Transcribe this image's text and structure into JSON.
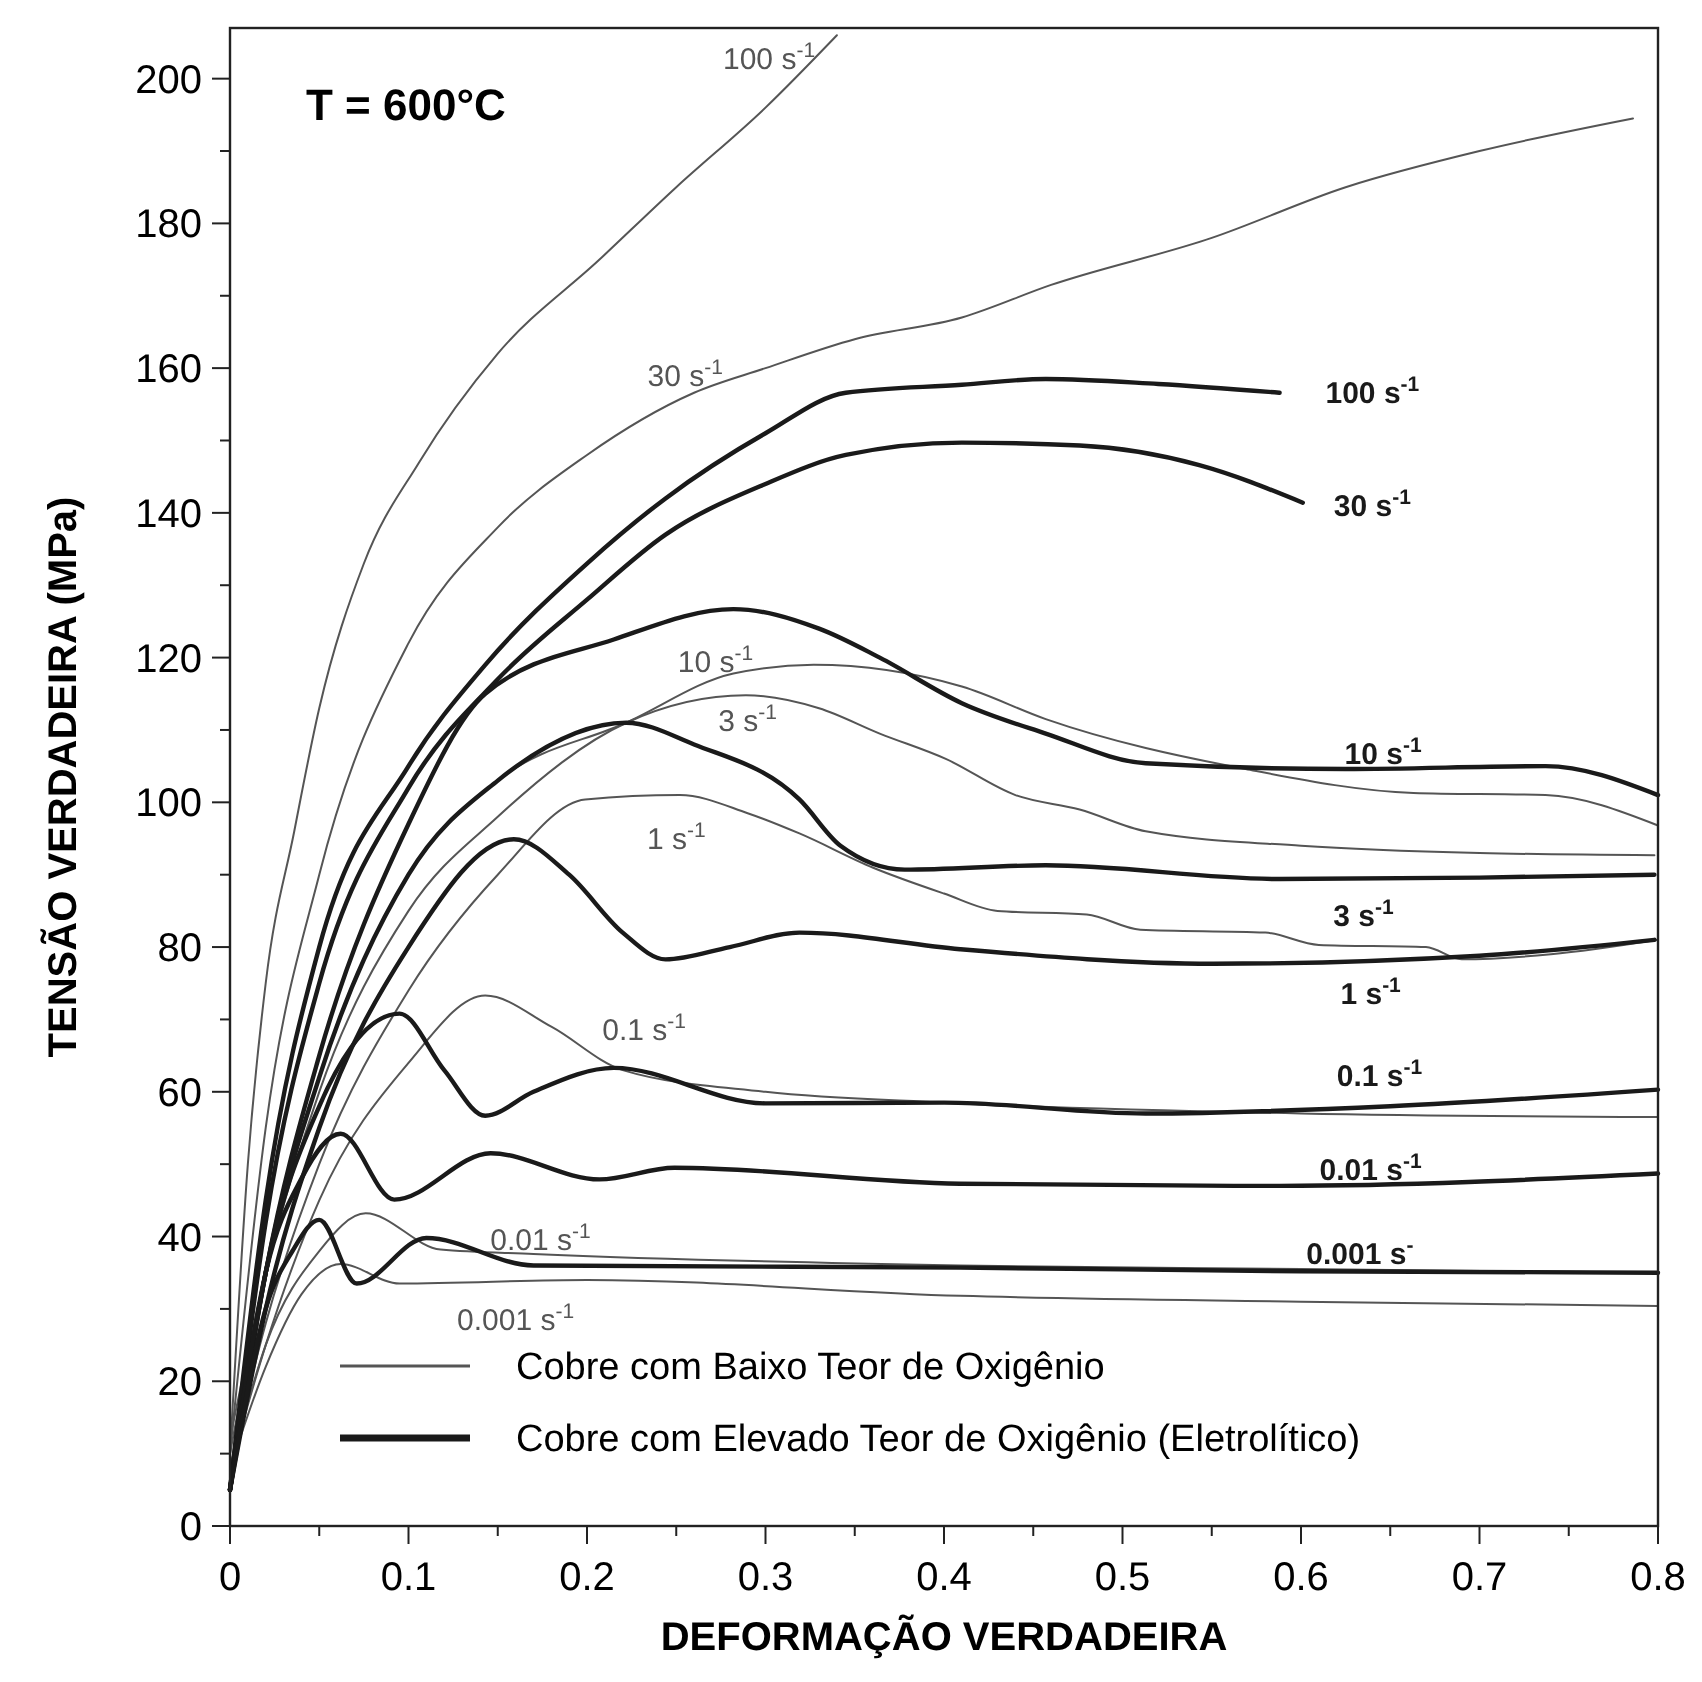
{
  "chart_data": {
    "type": "line",
    "xlabel": "DEFORMAÇÃO VERDADEIRA",
    "ylabel": "TENSÃO VERDADEIRA (MPa)",
    "xlim": [
      0,
      0.8
    ],
    "ylim": [
      0,
      207
    ],
    "xticks": [
      0,
      {
        "value": 0.05,
        "label": null
      },
      0.1,
      {
        "value": 0.15,
        "label": null
      },
      0.2,
      {
        "value": 0.25,
        "label": null
      },
      0.3,
      {
        "value": 0.35,
        "label": null
      },
      0.4,
      {
        "value": 0.45,
        "label": null
      },
      0.5,
      {
        "value": 0.55,
        "label": null
      },
      0.6,
      {
        "value": 0.65,
        "label": null
      },
      0.7,
      {
        "value": 0.75,
        "label": null
      },
      0.8
    ],
    "yticks": [
      0,
      {
        "value": 10,
        "label": null
      },
      20,
      {
        "value": 30,
        "label": null
      },
      40,
      {
        "value": 50,
        "label": null
      },
      60,
      {
        "value": 70,
        "label": null
      },
      80,
      {
        "value": 90,
        "label": null
      },
      100,
      {
        "value": 110,
        "label": null
      },
      120,
      {
        "value": 130,
        "label": null
      },
      140,
      {
        "value": 150,
        "label": null
      },
      160,
      {
        "value": 170,
        "label": null
      },
      180,
      {
        "value": 190,
        "label": null
      },
      200
    ],
    "grid": false,
    "marker": "none",
    "line_style": "solid",
    "series": [
      {
        "name": "100 s$^{-1}$",
        "color": "#555555",
        "x": [
          0,
          0.01,
          0.02,
          0.036,
          0.05,
          0.075,
          0.106,
          0.15,
          0.207,
          0.25,
          0.3,
          0.34
        ],
        "values": [
          10,
          50,
          75,
          96,
          113,
          133,
          147,
          162,
          175,
          185,
          196,
          206
        ]
      },
      {
        "name": "30 s$^{-1}$",
        "color": "#555555",
        "x": [
          0,
          0.02,
          0.05,
          0.1,
          0.15,
          0.2,
          0.26,
          0.3,
          0.35,
          0.41,
          0.46,
          0.55,
          0.625,
          0.7,
          0.786
        ],
        "values": [
          10,
          55,
          90,
          122,
          138,
          148,
          156.6,
          160,
          164,
          167,
          171.5,
          178,
          185,
          190,
          194.5
        ]
      },
      {
        "name": "10 s$^{-1}$",
        "color": "#555555",
        "x": [
          0,
          0.02,
          0.05,
          0.1,
          0.15,
          0.222,
          0.282,
          0.327,
          0.41,
          0.457,
          0.569,
          0.663,
          0.737,
          0.8
        ],
        "values": [
          10,
          35,
          62,
          90,
          103,
          111,
          117.8,
          119,
          116,
          111.5,
          104.6,
          101.3,
          101,
          96.8
        ]
      },
      {
        "name": "3 s$^{-1}$",
        "color": "#555555",
        "x": [
          0,
          0.02,
          0.05,
          0.1,
          0.15,
          0.222,
          0.289,
          0.33,
          0.364,
          0.401,
          0.44,
          0.476,
          0.513,
          0.6,
          0.7,
          0.798
        ],
        "values": [
          12,
          35,
          60,
          85,
          98,
          111,
          114.8,
          113,
          109.5,
          106,
          101,
          99,
          96,
          94,
          93,
          92.7
        ]
      },
      {
        "name": "1 s$^{-1}$",
        "color": "#555555",
        "x": [
          0,
          0.02,
          0.05,
          0.1,
          0.15,
          0.199,
          0.252,
          0.29,
          0.319,
          0.36,
          0.4,
          0.43,
          0.48,
          0.51,
          0.58,
          0.61,
          0.67,
          0.69,
          0.74,
          0.8
        ],
        "values": [
          8,
          28,
          50,
          74,
          90,
          100.4,
          101,
          98.5,
          95.7,
          91,
          87.4,
          85,
          84.5,
          82.4,
          82,
          80.3,
          80,
          78.3,
          79,
          81
        ]
      },
      {
        "name": "0.1 s$^{-1}$",
        "color": "#555555",
        "x": [
          0,
          0.02,
          0.05,
          0.1,
          0.143,
          0.18,
          0.22,
          0.3,
          0.4,
          0.6,
          0.8
        ],
        "values": [
          8,
          25,
          45,
          64,
          73.3,
          69,
          63,
          60,
          58.5,
          57,
          56.5
        ]
      },
      {
        "name": "0.01 s$^{-1}$",
        "color": "#555555",
        "x": [
          0,
          0.02,
          0.05,
          0.076,
          0.118,
          0.17,
          0.409,
          0.6,
          0.8
        ],
        "values": [
          8,
          25,
          38,
          43.2,
          38.2,
          37.6,
          36,
          35.5,
          35
        ]
      },
      {
        "name": "0.001 s$^{-1}$",
        "color": "#555555",
        "x": [
          0,
          0.02,
          0.04,
          0.062,
          0.095,
          0.2,
          0.409,
          0.6,
          0.8
        ],
        "values": [
          8,
          22,
          32,
          36.2,
          33.5,
          34,
          31.8,
          31,
          30.4
        ]
      },
      {
        "name": "100 s$^{-1}$",
        "color": "#1a1a1a",
        "x": [
          0,
          0.02,
          0.05,
          0.1,
          0.143,
          0.2,
          0.244,
          0.3,
          0.345,
          0.41,
          0.457,
          0.52,
          0.588
        ],
        "values": [
          5,
          45,
          80,
          105,
          119,
          133,
          142,
          151,
          156.6,
          157.7,
          158.5,
          157.8,
          156.6
        ]
      },
      {
        "name": "30 s$^{-1}$",
        "color": "#1a1a1a",
        "x": [
          0,
          0.02,
          0.05,
          0.1,
          0.15,
          0.2,
          0.244,
          0.3,
          0.345,
          0.41,
          0.476,
          0.543,
          0.601
        ],
        "values": [
          5,
          42,
          75,
          102,
          117,
          128,
          137,
          144,
          148,
          149.7,
          149.3,
          146.6,
          141.4
        ]
      },
      {
        "name": "10 s$^{-1}$",
        "color": "#1a1a1a",
        "x": [
          0,
          0.02,
          0.05,
          0.1,
          0.143,
          0.215,
          0.282,
          0.33,
          0.364,
          0.41,
          0.457,
          0.513,
          0.625,
          0.737,
          0.8
        ],
        "values": [
          5,
          35,
          65,
          97,
          115,
          122.5,
          126.7,
          124,
          120,
          113.7,
          109.5,
          105.4,
          104.6,
          105,
          101
        ]
      },
      {
        "name": "3 s$^{-1}$",
        "color": "#1a1a1a",
        "x": [
          0,
          0.02,
          0.05,
          0.1,
          0.15,
          0.222,
          0.26,
          0.319,
          0.342,
          0.378,
          0.457,
          0.588,
          0.7,
          0.798
        ],
        "values": [
          5,
          35,
          62,
          90,
          103,
          111,
          108,
          100.4,
          94,
          90.7,
          91.3,
          89.4,
          89.6,
          90
        ]
      },
      {
        "name": "1 s$^{-1}$",
        "color": "#1a1a1a",
        "x": [
          0,
          0.02,
          0.05,
          0.1,
          0.159,
          0.19,
          0.22,
          0.244,
          0.28,
          0.319,
          0.409,
          0.551,
          0.7,
          0.798
        ],
        "values": [
          5,
          30,
          55,
          80,
          94.9,
          90,
          82,
          78.3,
          80,
          82,
          79.7,
          77.7,
          78.8,
          81
        ]
      },
      {
        "name": "0.1 s$^{-1}$",
        "color": "#1a1a1a",
        "x": [
          0,
          0.02,
          0.05,
          0.095,
          0.12,
          0.143,
          0.17,
          0.215,
          0.3,
          0.4,
          0.513,
          0.65,
          0.8
        ],
        "values": [
          5,
          35,
          58,
          70.8,
          63,
          56.7,
          60,
          63.3,
          58.4,
          58.5,
          57,
          58,
          60.3
        ]
      },
      {
        "name": "0.01 s$^{-1}$",
        "color": "#1a1a1a",
        "x": [
          0,
          0.02,
          0.04,
          0.062,
          0.092,
          0.146,
          0.207,
          0.249,
          0.409,
          0.588,
          0.8
        ],
        "values": [
          5,
          35,
          48,
          54.2,
          45.1,
          51.5,
          47.9,
          49.5,
          47.3,
          47,
          48.7
        ]
      },
      {
        "name": "0.001 s$^{-}$",
        "color": "#1a1a1a",
        "x": [
          0,
          0.02,
          0.035,
          0.05,
          0.071,
          0.11,
          0.17,
          0.409,
          0.6,
          0.8
        ],
        "values": [
          5,
          30,
          38,
          42.3,
          33.5,
          39.8,
          36,
          35.7,
          35.2,
          35
        ]
      }
    ],
    "annotations": [
      "T = 600°C",
      "Cobre com Baixo Teor de Oxigênio",
      "Cobre com Elevado Teor de Oxigênio (Eletrolítico)"
    ]
  }
}
